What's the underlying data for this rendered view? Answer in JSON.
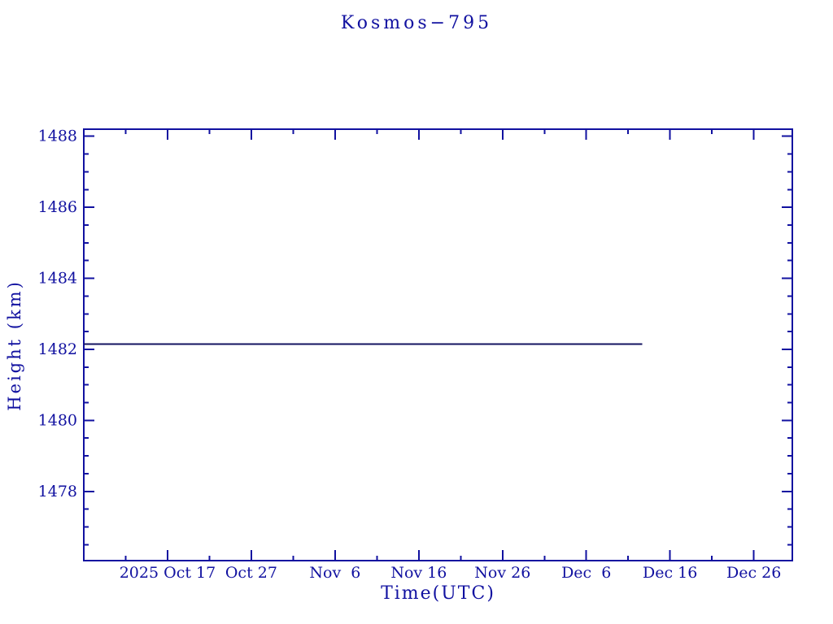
{
  "chart_data": {
    "type": "line",
    "title": "Kosmos−795",
    "xlabel": "Time(UTC)",
    "ylabel": "Height (km)",
    "grid": false,
    "legend": "none",
    "colors": {
      "axis": "#1111a0",
      "text": "#1111a0",
      "series_line": "#131360",
      "background": "#ffffff"
    },
    "x_axis": {
      "unit": "days-from-left-edge",
      "range_days": [
        0,
        84.6
      ],
      "major_ticks": [
        {
          "day": 10,
          "label": "2025 Oct 17"
        },
        {
          "day": 20,
          "label": "Oct 27"
        },
        {
          "day": 30,
          "label": "Nov  6"
        },
        {
          "day": 40,
          "label": "Nov 16"
        },
        {
          "day": 50,
          "label": "Nov 26"
        },
        {
          "day": 60,
          "label": "Dec  6"
        },
        {
          "day": 70,
          "label": "Dec 16"
        },
        {
          "day": 80,
          "label": "Dec 26"
        }
      ],
      "minor_tick_days": [
        5,
        15,
        25,
        35,
        45,
        55,
        65,
        75
      ]
    },
    "y_axis": {
      "unit": "km",
      "range_km": [
        1476.05,
        1488.2
      ],
      "major_ticks": [
        {
          "km": 1478,
          "label": "1478"
        },
        {
          "km": 1480,
          "label": "1480"
        },
        {
          "km": 1482,
          "label": "1482"
        },
        {
          "km": 1484,
          "label": "1484"
        },
        {
          "km": 1486,
          "label": "1486"
        },
        {
          "km": 1488,
          "label": "1488"
        }
      ],
      "minor_step_km": 0.5
    },
    "series": [
      {
        "name": "height-km",
        "points": [
          {
            "day": 0.0,
            "km": 1482.15
          },
          {
            "day": 66.7,
            "km": 1482.15
          }
        ]
      }
    ]
  }
}
